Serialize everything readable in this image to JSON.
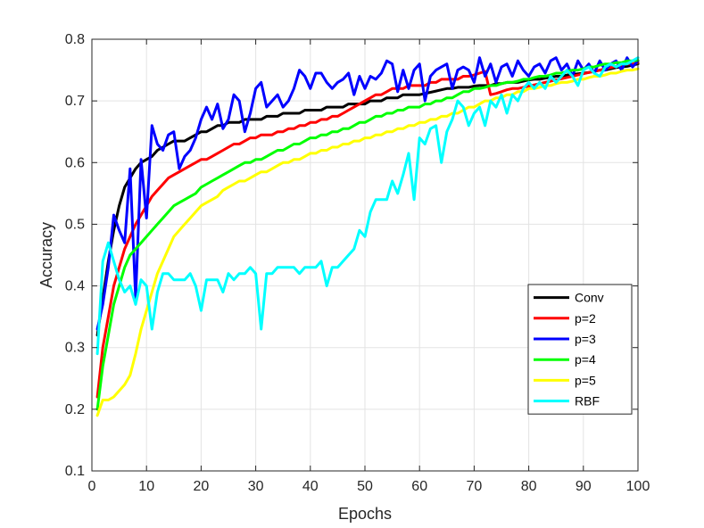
{
  "chart_data": {
    "type": "line",
    "title": "",
    "xlabel": "Epochs",
    "ylabel": "Accuracy",
    "xlim": [
      0,
      100
    ],
    "ylim": [
      0.1,
      0.8
    ],
    "xticks": [
      "0",
      "10",
      "20",
      "30",
      "40",
      "50",
      "60",
      "70",
      "80",
      "90",
      "100"
    ],
    "yticks": [
      "0.1",
      "0.2",
      "0.3",
      "0.4",
      "0.5",
      "0.6",
      "0.7",
      "0.8"
    ],
    "grid": true,
    "legend_position": "lower-right",
    "x": [
      1,
      2,
      3,
      4,
      5,
      6,
      7,
      8,
      9,
      10,
      11,
      12,
      13,
      14,
      15,
      16,
      17,
      18,
      19,
      20,
      21,
      22,
      23,
      24,
      25,
      26,
      27,
      28,
      29,
      30,
      31,
      32,
      33,
      34,
      35,
      36,
      37,
      38,
      39,
      40,
      41,
      42,
      43,
      44,
      45,
      46,
      47,
      48,
      49,
      50,
      51,
      52,
      53,
      54,
      55,
      56,
      57,
      58,
      59,
      60,
      61,
      62,
      63,
      64,
      65,
      66,
      67,
      68,
      69,
      70,
      71,
      72,
      73,
      74,
      75,
      76,
      77,
      78,
      79,
      80,
      81,
      82,
      83,
      84,
      85,
      86,
      87,
      88,
      89,
      90,
      91,
      92,
      93,
      94,
      95,
      96,
      97,
      98,
      99,
      100
    ],
    "series": [
      {
        "name": "Conv",
        "color": "#000000",
        "values": [
          0.32,
          0.38,
          0.44,
          0.49,
          0.53,
          0.56,
          0.575,
          0.59,
          0.6,
          0.605,
          0.61,
          0.62,
          0.625,
          0.63,
          0.635,
          0.635,
          0.635,
          0.64,
          0.645,
          0.65,
          0.65,
          0.655,
          0.66,
          0.66,
          0.665,
          0.665,
          0.665,
          0.67,
          0.67,
          0.67,
          0.67,
          0.675,
          0.675,
          0.675,
          0.68,
          0.68,
          0.68,
          0.68,
          0.685,
          0.685,
          0.685,
          0.685,
          0.69,
          0.69,
          0.69,
          0.69,
          0.695,
          0.695,
          0.695,
          0.695,
          0.7,
          0.7,
          0.7,
          0.705,
          0.705,
          0.705,
          0.71,
          0.71,
          0.71,
          0.71,
          0.712,
          0.714,
          0.716,
          0.718,
          0.72,
          0.72,
          0.722,
          0.722,
          0.722,
          0.724,
          0.725,
          0.725,
          0.725,
          0.728,
          0.728,
          0.73,
          0.73,
          0.73,
          0.732,
          0.734,
          0.735,
          0.735,
          0.737,
          0.738,
          0.74,
          0.74,
          0.742,
          0.743,
          0.744,
          0.745,
          0.746,
          0.748,
          0.75,
          0.75,
          0.752,
          0.754,
          0.755,
          0.756,
          0.758,
          0.76
        ]
      },
      {
        "name": "p=2",
        "color": "#ff0000",
        "values": [
          0.22,
          0.3,
          0.35,
          0.4,
          0.43,
          0.46,
          0.48,
          0.5,
          0.515,
          0.53,
          0.545,
          0.555,
          0.565,
          0.575,
          0.58,
          0.585,
          0.59,
          0.595,
          0.6,
          0.605,
          0.605,
          0.61,
          0.615,
          0.62,
          0.625,
          0.63,
          0.63,
          0.635,
          0.64,
          0.64,
          0.645,
          0.645,
          0.645,
          0.65,
          0.65,
          0.655,
          0.655,
          0.66,
          0.66,
          0.665,
          0.665,
          0.67,
          0.67,
          0.675,
          0.675,
          0.68,
          0.685,
          0.69,
          0.695,
          0.7,
          0.705,
          0.71,
          0.71,
          0.715,
          0.72,
          0.72,
          0.72,
          0.725,
          0.725,
          0.725,
          0.725,
          0.73,
          0.73,
          0.735,
          0.735,
          0.735,
          0.735,
          0.74,
          0.74,
          0.742,
          0.745,
          0.748,
          0.71,
          0.712,
          0.715,
          0.718,
          0.72,
          0.72,
          0.722,
          0.724,
          0.726,
          0.728,
          0.73,
          0.732,
          0.734,
          0.736,
          0.738,
          0.74,
          0.742,
          0.744,
          0.746,
          0.748,
          0.75,
          0.752,
          0.754,
          0.756,
          0.758,
          0.76,
          0.76,
          0.762
        ]
      },
      {
        "name": "p=3",
        "color": "#0000ff",
        "values": [
          0.33,
          0.37,
          0.43,
          0.515,
          0.49,
          0.47,
          0.59,
          0.38,
          0.605,
          0.51,
          0.66,
          0.63,
          0.62,
          0.645,
          0.65,
          0.59,
          0.61,
          0.62,
          0.64,
          0.67,
          0.69,
          0.67,
          0.695,
          0.655,
          0.67,
          0.71,
          0.7,
          0.65,
          0.68,
          0.72,
          0.73,
          0.69,
          0.7,
          0.71,
          0.69,
          0.7,
          0.72,
          0.75,
          0.74,
          0.72,
          0.745,
          0.745,
          0.73,
          0.72,
          0.73,
          0.735,
          0.745,
          0.71,
          0.74,
          0.72,
          0.74,
          0.735,
          0.745,
          0.765,
          0.76,
          0.715,
          0.75,
          0.72,
          0.75,
          0.76,
          0.7,
          0.74,
          0.75,
          0.755,
          0.76,
          0.72,
          0.75,
          0.755,
          0.75,
          0.73,
          0.77,
          0.74,
          0.76,
          0.73,
          0.755,
          0.76,
          0.74,
          0.765,
          0.75,
          0.74,
          0.755,
          0.76,
          0.745,
          0.765,
          0.77,
          0.75,
          0.76,
          0.74,
          0.765,
          0.75,
          0.76,
          0.745,
          0.765,
          0.75,
          0.76,
          0.765,
          0.75,
          0.77,
          0.755,
          0.765
        ]
      },
      {
        "name": "p=4",
        "color": "#00ff00",
        "values": [
          0.2,
          0.27,
          0.32,
          0.37,
          0.4,
          0.43,
          0.45,
          0.46,
          0.47,
          0.48,
          0.49,
          0.5,
          0.51,
          0.52,
          0.53,
          0.535,
          0.54,
          0.545,
          0.55,
          0.56,
          0.565,
          0.57,
          0.575,
          0.58,
          0.585,
          0.59,
          0.595,
          0.6,
          0.6,
          0.605,
          0.605,
          0.61,
          0.615,
          0.62,
          0.62,
          0.625,
          0.63,
          0.63,
          0.635,
          0.64,
          0.64,
          0.645,
          0.645,
          0.65,
          0.65,
          0.655,
          0.655,
          0.66,
          0.665,
          0.665,
          0.67,
          0.675,
          0.675,
          0.68,
          0.68,
          0.685,
          0.685,
          0.69,
          0.69,
          0.69,
          0.695,
          0.695,
          0.7,
          0.7,
          0.705,
          0.705,
          0.71,
          0.715,
          0.715,
          0.72,
          0.72,
          0.722,
          0.725,
          0.725,
          0.728,
          0.73,
          0.73,
          0.732,
          0.735,
          0.735,
          0.738,
          0.74,
          0.74,
          0.742,
          0.745,
          0.745,
          0.748,
          0.75,
          0.75,
          0.752,
          0.755,
          0.755,
          0.758,
          0.76,
          0.76,
          0.762,
          0.762,
          0.765,
          0.765,
          0.766
        ]
      },
      {
        "name": "p=5",
        "color": "#ffff00",
        "values": [
          0.19,
          0.215,
          0.215,
          0.22,
          0.23,
          0.24,
          0.255,
          0.29,
          0.33,
          0.36,
          0.39,
          0.42,
          0.44,
          0.46,
          0.48,
          0.49,
          0.5,
          0.51,
          0.52,
          0.53,
          0.535,
          0.54,
          0.545,
          0.555,
          0.56,
          0.565,
          0.57,
          0.57,
          0.575,
          0.58,
          0.585,
          0.585,
          0.59,
          0.595,
          0.6,
          0.6,
          0.605,
          0.605,
          0.61,
          0.615,
          0.615,
          0.62,
          0.62,
          0.625,
          0.625,
          0.63,
          0.63,
          0.635,
          0.635,
          0.64,
          0.64,
          0.645,
          0.645,
          0.65,
          0.65,
          0.655,
          0.655,
          0.66,
          0.66,
          0.665,
          0.665,
          0.67,
          0.67,
          0.675,
          0.675,
          0.68,
          0.68,
          0.685,
          0.69,
          0.69,
          0.695,
          0.7,
          0.7,
          0.705,
          0.705,
          0.71,
          0.71,
          0.715,
          0.715,
          0.72,
          0.72,
          0.722,
          0.725,
          0.725,
          0.728,
          0.73,
          0.73,
          0.732,
          0.735,
          0.735,
          0.738,
          0.74,
          0.74,
          0.742,
          0.745,
          0.745,
          0.748,
          0.75,
          0.75,
          0.752
        ]
      },
      {
        "name": "RBF",
        "color": "#00ffff",
        "values": [
          0.29,
          0.44,
          0.47,
          0.44,
          0.41,
          0.39,
          0.4,
          0.37,
          0.41,
          0.4,
          0.33,
          0.39,
          0.42,
          0.42,
          0.41,
          0.41,
          0.41,
          0.42,
          0.4,
          0.36,
          0.41,
          0.41,
          0.41,
          0.39,
          0.42,
          0.41,
          0.42,
          0.42,
          0.43,
          0.42,
          0.33,
          0.42,
          0.42,
          0.43,
          0.43,
          0.43,
          0.43,
          0.42,
          0.43,
          0.43,
          0.43,
          0.44,
          0.4,
          0.43,
          0.43,
          0.44,
          0.45,
          0.46,
          0.49,
          0.48,
          0.52,
          0.54,
          0.54,
          0.54,
          0.57,
          0.55,
          0.58,
          0.615,
          0.54,
          0.64,
          0.63,
          0.655,
          0.66,
          0.6,
          0.65,
          0.67,
          0.7,
          0.69,
          0.66,
          0.68,
          0.69,
          0.66,
          0.7,
          0.69,
          0.71,
          0.68,
          0.71,
          0.7,
          0.72,
          0.73,
          0.72,
          0.73,
          0.72,
          0.74,
          0.73,
          0.74,
          0.75,
          0.74,
          0.725,
          0.75,
          0.755,
          0.745,
          0.74,
          0.755,
          0.76,
          0.755,
          0.76,
          0.76,
          0.765,
          0.77
        ]
      }
    ]
  }
}
